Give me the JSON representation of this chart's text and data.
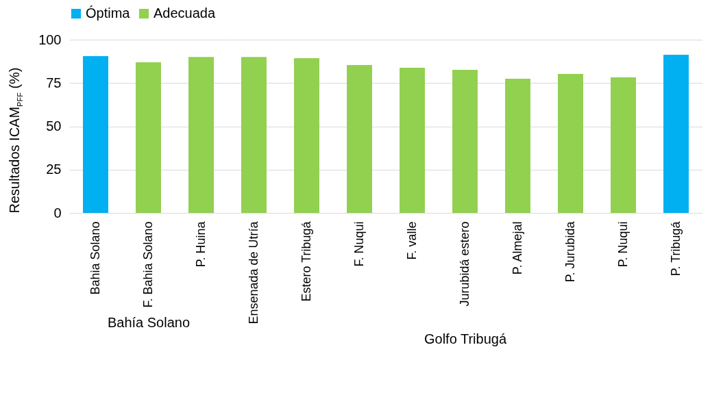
{
  "chart_data": [
    {
      "type": "bar",
      "xlabel": "Bahía Solano",
      "ylabel": "Resultados ICAM$_{PFF}$ (%)",
      "categories": [
        "Bahia Solano",
        "F. Bahia Solano",
        "P. Huina"
      ],
      "series": [
        {
          "name": "Óptima",
          "color": "#00b0f0",
          "values": [
            90.5,
            null,
            null
          ]
        },
        {
          "name": "Adecuada",
          "color": "#92d050",
          "values": [
            null,
            87,
            90
          ]
        }
      ],
      "ylim": [
        0,
        100
      ],
      "yticks": [
        0,
        25,
        50,
        75,
        100
      ],
      "grid": "y",
      "legend": "top"
    },
    {
      "type": "bar",
      "xlabel": "Golfo Tribugá",
      "categories": [
        "Ensenada de Utría",
        "Estero Tribugá",
        "F. Nuqui",
        "F. valle",
        "Jurubidá estero",
        "P. Almejal",
        "P. Jurubida",
        "P. Nuqui",
        "P. Tribugá"
      ],
      "series": [
        {
          "name": "Óptima",
          "color": "#00b0f0",
          "values": [
            null,
            null,
            null,
            null,
            null,
            null,
            null,
            null,
            91.3
          ]
        },
        {
          "name": "Adecuada",
          "color": "#92d050",
          "values": [
            90,
            89.3,
            85.4,
            83.8,
            82.6,
            77.5,
            80.2,
            78.3,
            null
          ]
        }
      ],
      "ylim": [
        0,
        100
      ],
      "yticks": [
        0,
        25,
        50,
        75,
        100
      ],
      "grid": "y",
      "legend": "top",
      "tick_labels": "x"
    }
  ]
}
